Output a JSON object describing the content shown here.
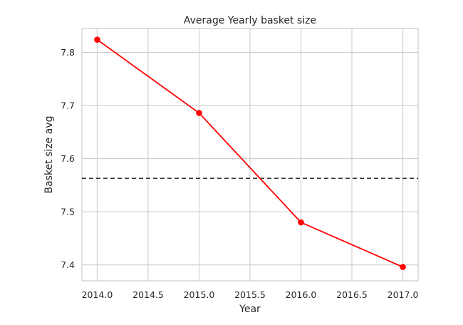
{
  "chart_data": {
    "type": "line",
    "title": "Average Yearly basket size",
    "xlabel": "Year",
    "ylabel": "Basket size avg",
    "xlim": [
      2013.85,
      2017.15
    ],
    "ylim": [
      7.37,
      7.845
    ],
    "x_ticks": [
      2014.0,
      2014.5,
      2015.0,
      2015.5,
      2016.0,
      2016.5,
      2017.0
    ],
    "x_tick_labels": [
      "2014.0",
      "2014.5",
      "2015.0",
      "2015.5",
      "2016.0",
      "2016.5",
      "2017.0"
    ],
    "y_ticks": [
      7.4,
      7.5,
      7.6,
      7.7,
      7.8
    ],
    "y_tick_labels": [
      "7.4",
      "7.5",
      "7.6",
      "7.7",
      "7.8"
    ],
    "grid": true,
    "series": [
      {
        "x": [
          2014,
          2015,
          2016,
          2017
        ],
        "y": [
          7.824,
          7.686,
          7.48,
          7.396
        ],
        "color": "#ff0000",
        "marker": "circle"
      }
    ],
    "reference_line": {
      "orientation": "horizontal",
      "y": 7.563,
      "style": "dashed",
      "color": "#1a1a1a"
    }
  }
}
